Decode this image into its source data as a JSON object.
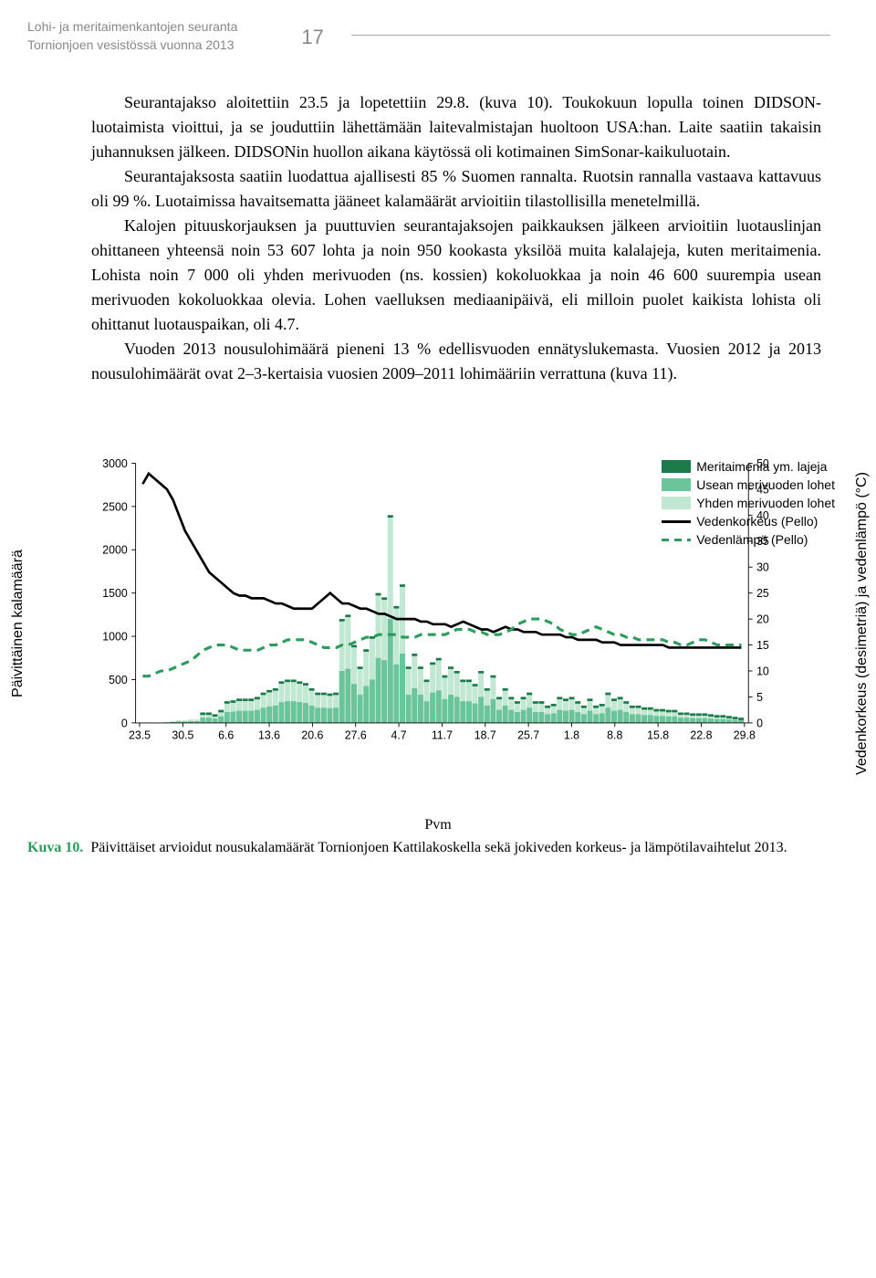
{
  "header": {
    "line1": "Lohi- ja meritaimenkantojen seuranta",
    "line2": "Tornionjoen vesistössä vuonna 2013",
    "page_number": "17"
  },
  "paragraphs": {
    "p1": "Seurantajakso aloitettiin 23.5 ja lopetettiin 29.8. (kuva 10). Toukokuun lopulla toinen DIDSON-luotaimista vioittui, ja se jouduttiin lähettämään laitevalmistajan huoltoon USA:han. Laite saatiin takaisin juhannuksen jälkeen. DIDSONin huollon aikana käytössä oli kotimainen SimSonar-kaikuluotain.",
    "p2": "Seurantajaksosta saatiin luodattua ajallisesti 85 % Suomen rannalta. Ruotsin rannalla vastaava kattavuus oli 99 %. Luotaimissa havaitsematta jääneet kalamäärät arvioitiin tilastollisilla menetelmillä.",
    "p3": "Kalojen pituuskorjauksen ja puuttuvien seurantajaksojen paikkauksen jälkeen arvioitiin luotauslinjan ohittaneen yhteensä noin 53 607 lohta ja noin 950 kookasta yksilöä muita kalalajeja, kuten meritaimenia. Lohista noin 7 000 oli yhden merivuoden (ns. kossien) kokoluokkaa ja noin 46 600 suurempia usean merivuoden kokoluokkaa olevia. Lohen vaelluksen mediaanipäivä, eli milloin puolet kaikista lohista oli ohittanut luotauspaikan, oli 4.7.",
    "p4": "Vuoden 2013 nousulohimäärä pieneni 13 % edellisvuoden ennätyslukemasta. Vuosien 2012 ja 2013 nousulohimäärät ovat 2–3-kertaisia vuosien 2009–2011 lohimääriin verrattuna (kuva 11)."
  },
  "chart": {
    "y_left_label": "Päivittäinen kalamäärä",
    "y_right_label": "Vedenkorkeus (desimetriä) ja vedenlämpö (°C)",
    "x_label": "Pvm",
    "y_left": {
      "min": 0,
      "max": 3000,
      "step": 500,
      "ticks": [
        0,
        500,
        1000,
        1500,
        2000,
        2500,
        3000
      ]
    },
    "y_right": {
      "min": 0,
      "max": 50,
      "step": 5,
      "ticks": [
        0,
        5,
        10,
        15,
        20,
        25,
        30,
        35,
        40,
        45,
        50
      ]
    },
    "x_ticks": [
      "23.5",
      "30.5",
      "6.6",
      "13.6",
      "20.6",
      "27.6",
      "4.7",
      "11.7",
      "18.7",
      "25.7",
      "1.8",
      "8.8",
      "15.8",
      "22.8",
      "29.8"
    ],
    "colors": {
      "meritaimen": "#1c7a4a",
      "usean": "#6cc49a",
      "yhden": "#c2e8d4",
      "korkeus": "#000000",
      "lampo": "#2a9d5c",
      "axis": "#000000"
    },
    "legend": [
      {
        "label": "Meritaimenia ym. lajeja",
        "type": "swatch",
        "color": "#1c7a4a"
      },
      {
        "label": "Usean merivuoden lohet",
        "type": "swatch",
        "color": "#6cc49a"
      },
      {
        "label": "Yhden merivuoden lohet",
        "type": "swatch",
        "color": "#c2e8d4"
      },
      {
        "label": "Vedenkorkeus (Pello)",
        "type": "line",
        "color": "#000000"
      },
      {
        "label": "Vedenlämpö (Pello)",
        "type": "dash",
        "color": "#2a9d5c"
      }
    ],
    "bars_yhden": [
      0,
      0,
      0,
      0,
      10,
      20,
      30,
      30,
      40,
      40,
      120,
      120,
      100,
      150,
      250,
      260,
      280,
      280,
      280,
      300,
      350,
      380,
      400,
      480,
      500,
      500,
      480,
      460,
      400,
      350,
      350,
      340,
      350,
      1200,
      1250,
      900,
      650,
      850,
      1000,
      1500,
      1450,
      2400,
      1350,
      1600,
      650,
      800,
      650,
      500,
      700,
      750,
      550,
      650,
      600,
      500,
      500,
      450,
      600,
      400,
      550,
      300,
      400,
      300,
      250,
      300,
      350,
      250,
      250,
      200,
      220,
      300,
      280,
      300,
      250,
      200,
      280,
      200,
      220,
      350,
      280,
      300,
      250,
      200,
      200,
      180,
      180,
      160,
      160,
      150,
      150,
      120,
      120,
      110,
      110,
      110,
      100,
      90,
      90,
      80,
      70,
      60
    ],
    "bars_usean": [
      0,
      0,
      0,
      0,
      5,
      10,
      15,
      15,
      20,
      20,
      60,
      60,
      50,
      75,
      125,
      130,
      140,
      140,
      140,
      150,
      175,
      190,
      200,
      240,
      250,
      250,
      240,
      230,
      200,
      175,
      175,
      170,
      175,
      600,
      625,
      450,
      325,
      425,
      500,
      750,
      725,
      1200,
      675,
      800,
      325,
      400,
      325,
      250,
      350,
      375,
      275,
      325,
      300,
      250,
      250,
      225,
      300,
      200,
      275,
      150,
      200,
      150,
      125,
      150,
      175,
      125,
      125,
      100,
      110,
      150,
      140,
      150,
      125,
      100,
      140,
      100,
      110,
      175,
      140,
      150,
      125,
      100,
      100,
      90,
      90,
      80,
      80,
      75,
      75,
      60,
      60,
      55,
      55,
      55,
      50,
      45,
      45,
      40,
      35,
      30
    ],
    "line_korkeus": [
      46,
      48,
      47,
      46,
      45,
      43,
      40,
      37,
      35,
      33,
      31,
      29,
      28,
      27,
      26,
      25,
      24.5,
      24.5,
      24,
      24,
      24,
      23.5,
      23,
      23,
      22.5,
      22,
      22,
      22,
      22,
      23,
      24,
      25,
      24,
      23,
      23,
      22.5,
      22,
      22,
      21.5,
      21,
      21,
      20.5,
      20,
      20,
      20,
      20,
      19.5,
      19.5,
      19,
      19,
      19,
      18.5,
      19,
      19.5,
      19,
      18.5,
      18,
      18,
      17.5,
      18,
      18.5,
      18,
      18,
      17.5,
      17.5,
      17.5,
      17,
      17,
      17,
      17,
      16.5,
      16.5,
      16,
      16,
      16,
      16,
      15.5,
      15.5,
      15.5,
      15,
      15,
      15,
      15,
      15,
      15,
      15,
      15,
      14.5,
      14.5,
      14.5,
      14.5,
      14.5,
      14.5,
      14.5,
      14.5,
      14.5,
      14.5,
      14.5,
      14.5,
      14.5
    ],
    "line_lampo": [
      9,
      9,
      9.5,
      10,
      10,
      10.5,
      11,
      11.5,
      12,
      13,
      14,
      14.5,
      15,
      15,
      15,
      14.5,
      14,
      14,
      14,
      14,
      14.5,
      15,
      15,
      15.5,
      16,
      16,
      16,
      16,
      15.5,
      15,
      14.5,
      14.5,
      14.5,
      15,
      15,
      15.5,
      16,
      16.5,
      16.5,
      17,
      17,
      17,
      17,
      16.5,
      16.5,
      16.5,
      17,
      17,
      17,
      17,
      17,
      17.5,
      18,
      18,
      18,
      17.5,
      17.5,
      17,
      17,
      17,
      17.5,
      18,
      19,
      19.5,
      20,
      20,
      20,
      19.5,
      19,
      18,
      17.5,
      17,
      17,
      17.5,
      18,
      18.5,
      18,
      17.5,
      17,
      17,
      16.5,
      16.5,
      16,
      16,
      16,
      16,
      16,
      15.5,
      15.5,
      15,
      15,
      15.5,
      16,
      16,
      15.5,
      15,
      15,
      15,
      15,
      15
    ]
  },
  "caption": {
    "label": "Kuva 10.",
    "text": "Päivittäiset arvioidut nousukalamäärät Tornionjoen Kattilakoskella sekä jokiveden korkeus- ja lämpötilavaihtelut 2013."
  }
}
